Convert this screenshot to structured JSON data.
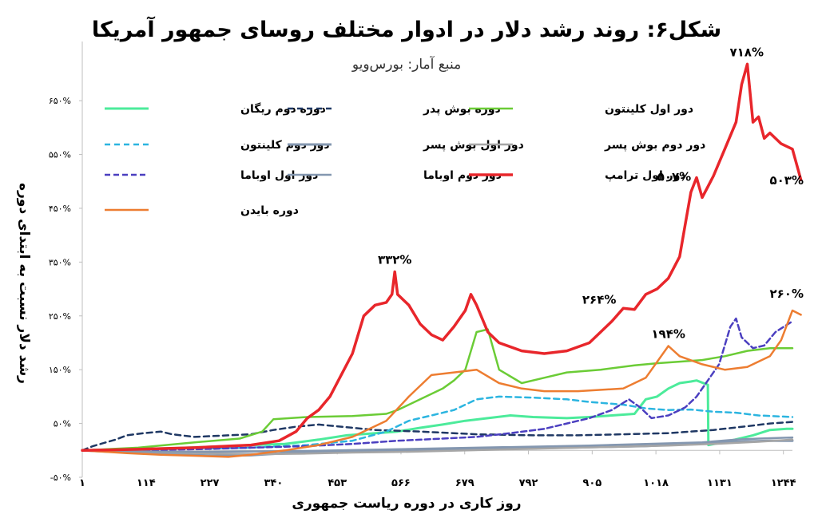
{
  "chart_data": {
    "type": "line",
    "title": "شکل۶: روند رشد دلار در ادوار مختلف روسای جمهور آمریکا",
    "subtitle": "منبع آمار: بورس‌ویو",
    "xlabel": "روز کاری در دوره ریاست جمهوری",
    "ylabel": "رشد دلار نسبت به ابتدای دوره",
    "xlim": [
      1,
      1260
    ],
    "ylim": [
      -50,
      760
    ],
    "grid": false,
    "legend_position": "top",
    "x_ticks": [
      {
        "value": 1,
        "label": "۱"
      },
      {
        "value": 114,
        "label": "۱۱۴"
      },
      {
        "value": 227,
        "label": "۲۲۷"
      },
      {
        "value": 340,
        "label": "۳۴۰"
      },
      {
        "value": 453,
        "label": "۴۵۳"
      },
      {
        "value": 566,
        "label": "۵۶۶"
      },
      {
        "value": 679,
        "label": "۶۷۹"
      },
      {
        "value": 792,
        "label": "۷۹۲"
      },
      {
        "value": 905,
        "label": "۹۰۵"
      },
      {
        "value": 1018,
        "label": "۱۰۱۸"
      },
      {
        "value": 1131,
        "label": "۱۱۳۱"
      },
      {
        "value": 1244,
        "label": "۱۲۴۴"
      }
    ],
    "y_ticks": [
      {
        "value": -50,
        "label": "-۵۰%"
      },
      {
        "value": 50,
        "label": "۵۰%"
      },
      {
        "value": 150,
        "label": "۱۵۰%"
      },
      {
        "value": 250,
        "label": "۲۵۰%"
      },
      {
        "value": 350,
        "label": "۳۵۰%"
      },
      {
        "value": 450,
        "label": "۴۵۰%"
      },
      {
        "value": 550,
        "label": "۵۵۰%"
      },
      {
        "value": 650,
        "label": "۶۵۰%"
      }
    ],
    "series": [
      {
        "name": "دوره دوم ریگان",
        "color": "#4CEB9B",
        "dash": "",
        "width": 3,
        "points": [
          [
            1,
            0
          ],
          [
            80,
            2
          ],
          [
            160,
            4
          ],
          [
            260,
            8
          ],
          [
            300,
            10
          ],
          [
            360,
            12
          ],
          [
            420,
            20
          ],
          [
            470,
            28
          ],
          [
            560,
            35
          ],
          [
            600,
            42
          ],
          [
            640,
            48
          ],
          [
            680,
            55
          ],
          [
            720,
            60
          ],
          [
            760,
            65
          ],
          [
            800,
            62
          ],
          [
            860,
            60
          ],
          [
            900,
            62
          ],
          [
            940,
            65
          ],
          [
            980,
            68
          ],
          [
            1000,
            95
          ],
          [
            1020,
            100
          ],
          [
            1040,
            115
          ],
          [
            1060,
            125
          ],
          [
            1080,
            128
          ],
          [
            1090,
            130
          ],
          [
            1110,
            122
          ],
          [
            1111,
            10
          ],
          [
            1150,
            18
          ],
          [
            1190,
            28
          ],
          [
            1220,
            38
          ],
          [
            1250,
            40
          ],
          [
            1260,
            40
          ]
        ]
      },
      {
        "name": "دوره بوش پدر",
        "color": "#1F3864",
        "dash": "7,5",
        "width": 2.5,
        "points": [
          [
            1,
            0
          ],
          [
            20,
            8
          ],
          [
            60,
            20
          ],
          [
            80,
            28
          ],
          [
            110,
            32
          ],
          [
            140,
            35
          ],
          [
            160,
            30
          ],
          [
            200,
            25
          ],
          [
            260,
            28
          ],
          [
            300,
            30
          ],
          [
            340,
            38
          ],
          [
            380,
            44
          ],
          [
            420,
            48
          ],
          [
            460,
            44
          ],
          [
            520,
            38
          ],
          [
            600,
            35
          ],
          [
            700,
            30
          ],
          [
            800,
            28
          ],
          [
            880,
            28
          ],
          [
            960,
            30
          ],
          [
            1040,
            32
          ],
          [
            1120,
            38
          ],
          [
            1180,
            45
          ],
          [
            1220,
            50
          ],
          [
            1260,
            53
          ]
        ]
      },
      {
        "name": "دور اول کلینتون",
        "color": "#6BCC36",
        "dash": "",
        "width": 2.5,
        "points": [
          [
            1,
            0
          ],
          [
            100,
            5
          ],
          [
            200,
            15
          ],
          [
            280,
            22
          ],
          [
            320,
            35
          ],
          [
            340,
            58
          ],
          [
            400,
            62
          ],
          [
            480,
            64
          ],
          [
            540,
            68
          ],
          [
            560,
            75
          ],
          [
            600,
            95
          ],
          [
            640,
            115
          ],
          [
            660,
            130
          ],
          [
            680,
            150
          ],
          [
            700,
            220
          ],
          [
            720,
            225
          ],
          [
            740,
            150
          ],
          [
            780,
            125
          ],
          [
            820,
            135
          ],
          [
            860,
            145
          ],
          [
            920,
            150
          ],
          [
            980,
            158
          ],
          [
            1020,
            162
          ],
          [
            1060,
            165
          ],
          [
            1100,
            168
          ],
          [
            1140,
            175
          ],
          [
            1180,
            185
          ],
          [
            1220,
            190
          ],
          [
            1260,
            190
          ]
        ]
      },
      {
        "name": "دور دوم کلینتون",
        "color": "#2CB5E0",
        "dash": "7,5",
        "width": 2.5,
        "points": [
          [
            1,
            0
          ],
          [
            100,
            2
          ],
          [
            200,
            3
          ],
          [
            300,
            5
          ],
          [
            400,
            10
          ],
          [
            480,
            18
          ],
          [
            540,
            35
          ],
          [
            580,
            55
          ],
          [
            620,
            65
          ],
          [
            660,
            75
          ],
          [
            700,
            95
          ],
          [
            740,
            100
          ],
          [
            800,
            98
          ],
          [
            860,
            95
          ],
          [
            900,
            90
          ],
          [
            960,
            85
          ],
          [
            1000,
            78
          ],
          [
            1040,
            75
          ],
          [
            1080,
            76
          ],
          [
            1120,
            72
          ],
          [
            1160,
            70
          ],
          [
            1200,
            65
          ],
          [
            1260,
            62
          ]
        ]
      },
      {
        "name": "دور اول بوش پسر",
        "color": "#8497B0",
        "dash": "",
        "width": 3,
        "points": [
          [
            1,
            0
          ],
          [
            60,
            -3
          ],
          [
            120,
            -5
          ],
          [
            180,
            -8
          ],
          [
            240,
            -10
          ],
          [
            300,
            -9
          ],
          [
            360,
            -5
          ],
          [
            420,
            -3
          ],
          [
            500,
            -2
          ],
          [
            600,
            0
          ],
          [
            700,
            2
          ],
          [
            800,
            4
          ],
          [
            900,
            6
          ],
          [
            1000,
            8
          ],
          [
            1080,
            12
          ],
          [
            1160,
            16
          ],
          [
            1220,
            18
          ],
          [
            1260,
            18
          ]
        ]
      },
      {
        "name": "دور دوم بوش پسر",
        "color": "#A6A6A6",
        "dash": "",
        "width": 2.5,
        "points": [
          [
            1,
            0
          ],
          [
            80,
            -2
          ],
          [
            160,
            -4
          ],
          [
            240,
            -6
          ],
          [
            320,
            -7
          ],
          [
            400,
            -6
          ],
          [
            480,
            -4
          ],
          [
            560,
            -3
          ],
          [
            640,
            -1
          ],
          [
            720,
            1
          ],
          [
            800,
            3
          ],
          [
            880,
            5
          ],
          [
            960,
            7
          ],
          [
            1040,
            9
          ],
          [
            1120,
            12
          ],
          [
            1200,
            16
          ],
          [
            1260,
            20
          ]
        ]
      },
      {
        "name": "دور اول اوباما",
        "color": "#4B3FC0",
        "dash": "7,4",
        "width": 2.5,
        "points": [
          [
            1,
            0
          ],
          [
            100,
            0
          ],
          [
            200,
            2
          ],
          [
            300,
            5
          ],
          [
            400,
            8
          ],
          [
            480,
            12
          ],
          [
            560,
            18
          ],
          [
            640,
            22
          ],
          [
            700,
            25
          ],
          [
            760,
            32
          ],
          [
            820,
            40
          ],
          [
            860,
            50
          ],
          [
            900,
            60
          ],
          [
            940,
            75
          ],
          [
            970,
            95
          ],
          [
            990,
            80
          ],
          [
            1010,
            60
          ],
          [
            1040,
            65
          ],
          [
            1070,
            80
          ],
          [
            1090,
            100
          ],
          [
            1110,
            130
          ],
          [
            1130,
            160
          ],
          [
            1150,
            230
          ],
          [
            1160,
            245
          ],
          [
            1170,
            210
          ],
          [
            1190,
            190
          ],
          [
            1210,
            195
          ],
          [
            1230,
            220
          ],
          [
            1260,
            240
          ]
        ]
      },
      {
        "name": "دور دوم اوباما",
        "color": "#8497B0",
        "dash": "",
        "width": 2.5,
        "points": [
          [
            1,
            0
          ],
          [
            100,
            -2
          ],
          [
            200,
            -3
          ],
          [
            300,
            -2
          ],
          [
            400,
            -1
          ],
          [
            500,
            1
          ],
          [
            600,
            3
          ],
          [
            700,
            5
          ],
          [
            800,
            7
          ],
          [
            900,
            9
          ],
          [
            1000,
            12
          ],
          [
            1100,
            15
          ],
          [
            1160,
            20
          ],
          [
            1200,
            22
          ],
          [
            1260,
            24
          ]
        ]
      },
      {
        "name": "دور اول ترامپ",
        "color": "#E8262B",
        "dash": "",
        "width": 3.5,
        "points": [
          [
            1,
            0
          ],
          [
            100,
            2
          ],
          [
            200,
            5
          ],
          [
            260,
            8
          ],
          [
            300,
            10
          ],
          [
            350,
            18
          ],
          [
            380,
            35
          ],
          [
            400,
            60
          ],
          [
            420,
            75
          ],
          [
            440,
            100
          ],
          [
            460,
            140
          ],
          [
            480,
            180
          ],
          [
            500,
            250
          ],
          [
            520,
            270
          ],
          [
            540,
            275
          ],
          [
            550,
            290
          ],
          [
            555,
            332
          ],
          [
            560,
            290
          ],
          [
            580,
            270
          ],
          [
            600,
            235
          ],
          [
            620,
            215
          ],
          [
            640,
            205
          ],
          [
            660,
            230
          ],
          [
            680,
            260
          ],
          [
            690,
            290
          ],
          [
            700,
            270
          ],
          [
            720,
            220
          ],
          [
            740,
            200
          ],
          [
            780,
            185
          ],
          [
            820,
            180
          ],
          [
            860,
            185
          ],
          [
            900,
            200
          ],
          [
            920,
            220
          ],
          [
            940,
            240
          ],
          [
            960,
            264
          ],
          [
            980,
            262
          ],
          [
            1000,
            290
          ],
          [
            1020,
            300
          ],
          [
            1040,
            320
          ],
          [
            1060,
            360
          ],
          [
            1070,
            420
          ],
          [
            1080,
            480
          ],
          [
            1090,
            507
          ],
          [
            1100,
            470
          ],
          [
            1110,
            490
          ],
          [
            1120,
            510
          ],
          [
            1140,
            560
          ],
          [
            1160,
            610
          ],
          [
            1170,
            680
          ],
          [
            1180,
            718
          ],
          [
            1190,
            610
          ],
          [
            1200,
            620
          ],
          [
            1210,
            580
          ],
          [
            1220,
            590
          ],
          [
            1240,
            570
          ],
          [
            1260,
            560
          ],
          [
            1275,
            503
          ]
        ]
      },
      {
        "name": "دوره بایدن",
        "color": "#ED7D31",
        "dash": "",
        "width": 2.5,
        "points": [
          [
            1,
            0
          ],
          [
            80,
            -5
          ],
          [
            140,
            -8
          ],
          [
            200,
            -10
          ],
          [
            260,
            -12
          ],
          [
            300,
            -8
          ],
          [
            360,
            0
          ],
          [
            420,
            10
          ],
          [
            480,
            25
          ],
          [
            540,
            55
          ],
          [
            580,
            100
          ],
          [
            620,
            140
          ],
          [
            660,
            145
          ],
          [
            700,
            150
          ],
          [
            740,
            125
          ],
          [
            780,
            115
          ],
          [
            820,
            110
          ],
          [
            880,
            110
          ],
          [
            960,
            115
          ],
          [
            1000,
            135
          ],
          [
            1040,
            194
          ],
          [
            1060,
            175
          ],
          [
            1100,
            160
          ],
          [
            1140,
            150
          ],
          [
            1180,
            155
          ],
          [
            1220,
            175
          ],
          [
            1240,
            205
          ],
          [
            1260,
            260
          ],
          [
            1275,
            252
          ]
        ]
      }
    ],
    "annotations": [
      {
        "text": "۳۳۲%",
        "x": 555,
        "y": 332
      },
      {
        "text": "۲۶۴%",
        "x": 960,
        "y": 264
      },
      {
        "text": "۱۹۴%",
        "x": 1040,
        "y": 194
      },
      {
        "text": "۵۰۷%",
        "x": 1090,
        "y": 507
      },
      {
        "text": "۷۱۸%",
        "x": 1180,
        "y": 718
      },
      {
        "text": "۵۰۳%",
        "x": 1275,
        "y": 503
      },
      {
        "text": "۲۶۰%",
        "x": 1260,
        "y": 260
      }
    ]
  }
}
